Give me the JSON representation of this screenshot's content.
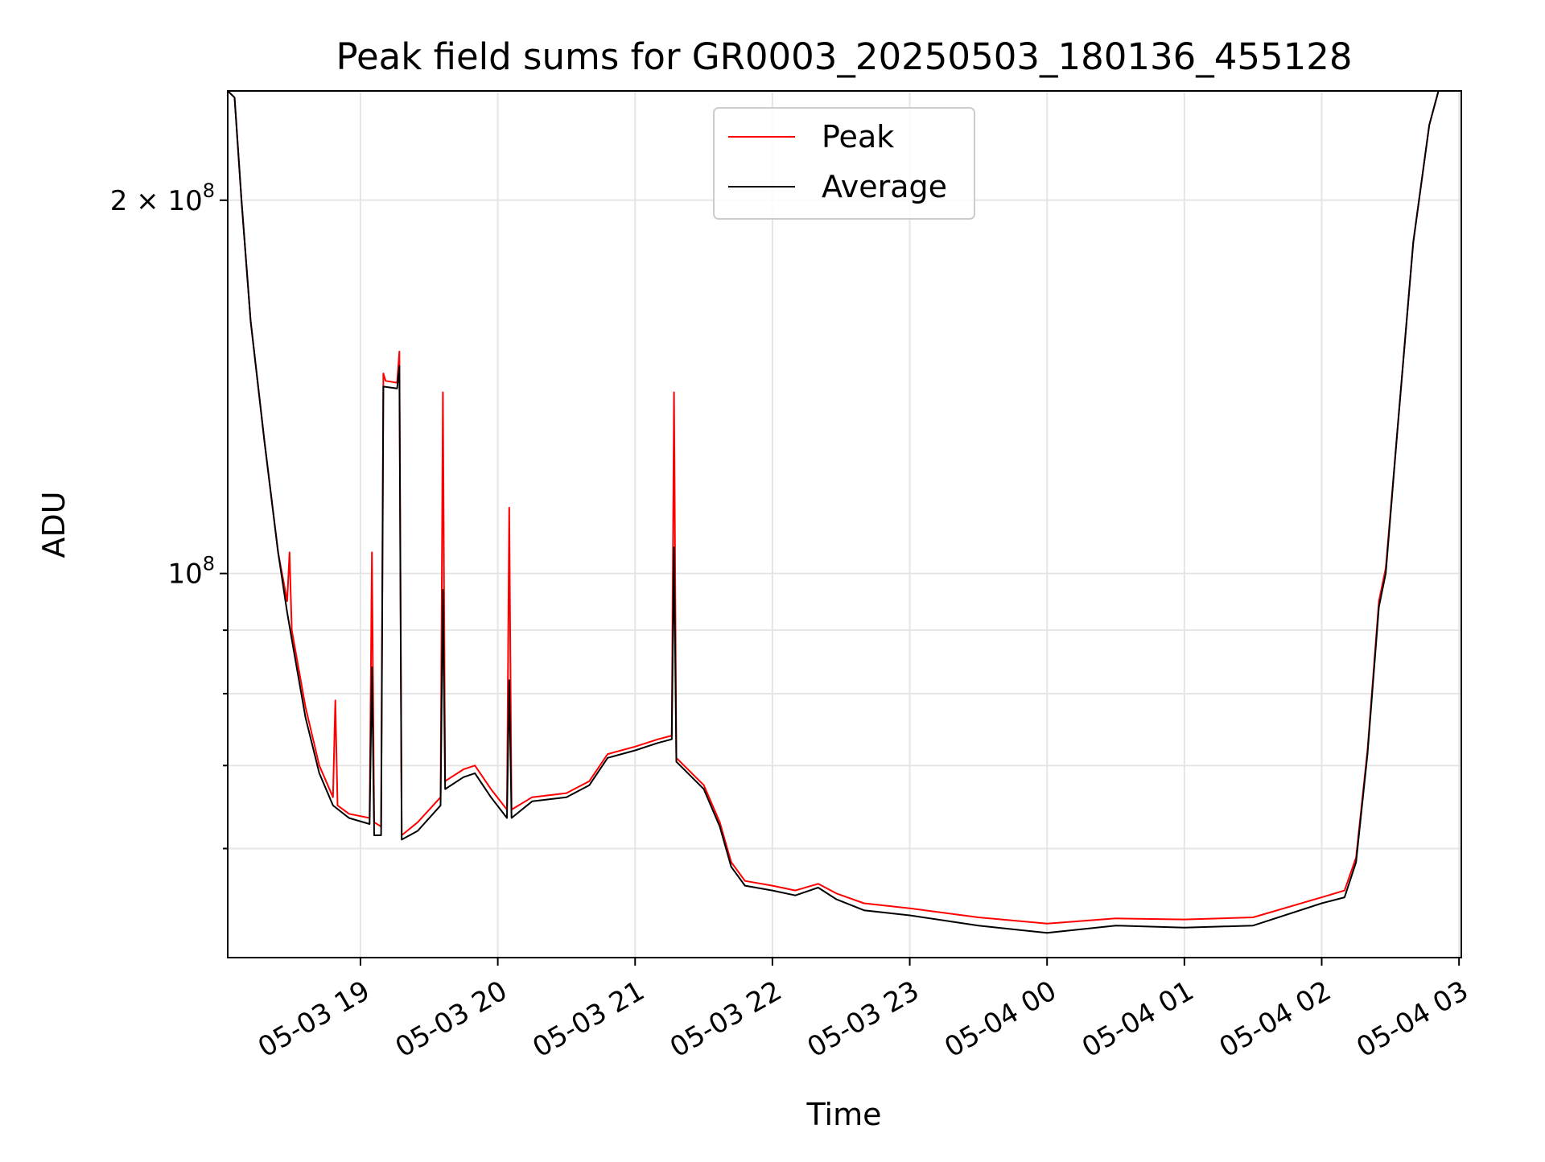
{
  "chart_data": {
    "type": "line",
    "title": "Peak field sums for GR0003_20250503_180136_455128",
    "xlabel": "Time",
    "ylabel": "ADU",
    "y_scale": "log",
    "x_range": [
      "2025-05-03 18:02",
      "2025-05-04 03:01"
    ],
    "ylim": [
      49000000,
      245000000
    ],
    "grid": true,
    "legend_position": "top-center",
    "x_ticks": [
      {
        "t": "2025-05-03 19:00",
        "label": "05-03 19"
      },
      {
        "t": "2025-05-03 20:00",
        "label": "05-03 20"
      },
      {
        "t": "2025-05-03 21:00",
        "label": "05-03 21"
      },
      {
        "t": "2025-05-03 22:00",
        "label": "05-03 22"
      },
      {
        "t": "2025-05-03 23:00",
        "label": "05-03 23"
      },
      {
        "t": "2025-05-04 00:00",
        "label": "05-04 00"
      },
      {
        "t": "2025-05-04 01:00",
        "label": "05-04 01"
      },
      {
        "t": "2025-05-04 02:00",
        "label": "05-04 02"
      },
      {
        "t": "2025-05-04 03:00",
        "label": "05-04 03"
      }
    ],
    "y_ticks_major": [
      {
        "value": 100000000,
        "base": "10",
        "exp": "8",
        "coef": ""
      },
      {
        "value": 200000000,
        "base": "10",
        "exp": "8",
        "coef": "2 × "
      }
    ],
    "y_ticks_minor": [
      60000000,
      70000000,
      80000000,
      90000000
    ],
    "series": [
      {
        "name": "Peak",
        "color": "#ff0000",
        "points": [
          [
            "2025-05-03 18:02",
            245000000
          ],
          [
            "2025-05-03 18:05",
            242000000
          ],
          [
            "2025-05-03 18:08",
            200000000
          ],
          [
            "2025-05-03 18:12",
            160000000
          ],
          [
            "2025-05-03 18:18",
            128000000
          ],
          [
            "2025-05-03 18:24",
            104000000
          ],
          [
            "2025-05-03 18:28",
            95000000
          ],
          [
            "2025-05-03 18:29",
            104000000
          ],
          [
            "2025-05-03 18:30",
            90000000
          ],
          [
            "2025-05-03 18:36",
            78000000
          ],
          [
            "2025-05-03 18:42",
            70000000
          ],
          [
            "2025-05-03 18:48",
            66000000
          ],
          [
            "2025-05-03 18:49",
            79000000
          ],
          [
            "2025-05-03 18:50",
            65000000
          ],
          [
            "2025-05-03 18:55",
            64000000
          ],
          [
            "2025-05-03 19:04",
            63500000
          ],
          [
            "2025-05-03 19:05",
            104000000
          ],
          [
            "2025-05-03 19:06",
            63000000
          ],
          [
            "2025-05-03 19:09",
            62500000
          ],
          [
            "2025-05-03 19:10",
            145000000
          ],
          [
            "2025-05-03 19:11",
            143000000
          ],
          [
            "2025-05-03 19:16",
            142500000
          ],
          [
            "2025-05-03 19:17",
            151000000
          ],
          [
            "2025-05-03 19:18",
            61500000
          ],
          [
            "2025-05-03 19:25",
            63000000
          ],
          [
            "2025-05-03 19:35",
            66000000
          ],
          [
            "2025-05-03 19:36",
            140000000
          ],
          [
            "2025-05-03 19:37",
            68000000
          ],
          [
            "2025-05-03 19:45",
            69500000
          ],
          [
            "2025-05-03 19:50",
            70000000
          ],
          [
            "2025-05-03 19:57",
            67000000
          ],
          [
            "2025-05-03 20:04",
            64500000
          ],
          [
            "2025-05-03 20:05",
            113000000
          ],
          [
            "2025-05-03 20:06",
            64500000
          ],
          [
            "2025-05-03 20:15",
            66000000
          ],
          [
            "2025-05-03 20:30",
            66500000
          ],
          [
            "2025-05-03 20:40",
            68000000
          ],
          [
            "2025-05-03 20:48",
            71500000
          ],
          [
            "2025-05-03 21:00",
            72500000
          ],
          [
            "2025-05-03 21:10",
            73500000
          ],
          [
            "2025-05-03 21:16",
            74000000
          ],
          [
            "2025-05-03 21:17",
            140000000
          ],
          [
            "2025-05-03 21:18",
            71000000
          ],
          [
            "2025-05-03 21:30",
            67500000
          ],
          [
            "2025-05-03 21:37",
            63000000
          ],
          [
            "2025-05-03 21:42",
            58500000
          ],
          [
            "2025-05-03 21:48",
            56500000
          ],
          [
            "2025-05-03 22:00",
            56000000
          ],
          [
            "2025-05-03 22:10",
            55500000
          ],
          [
            "2025-05-03 22:20",
            56200000
          ],
          [
            "2025-05-03 22:28",
            55200000
          ],
          [
            "2025-05-03 22:40",
            54200000
          ],
          [
            "2025-05-03 23:00",
            53700000
          ],
          [
            "2025-05-03 23:30",
            52800000
          ],
          [
            "2025-05-04 00:00",
            52200000
          ],
          [
            "2025-05-04 00:30",
            52700000
          ],
          [
            "2025-05-04 01:00",
            52600000
          ],
          [
            "2025-05-04 01:30",
            52800000
          ],
          [
            "2025-05-04 02:00",
            54800000
          ],
          [
            "2025-05-04 02:10",
            55500000
          ],
          [
            "2025-05-04 02:15",
            59000000
          ],
          [
            "2025-05-04 02:20",
            72000000
          ],
          [
            "2025-05-04 02:25",
            95000000
          ],
          [
            "2025-05-04 02:28",
            101000000
          ],
          [
            "2025-05-04 02:33",
            130000000
          ],
          [
            "2025-05-04 02:40",
            185000000
          ],
          [
            "2025-05-04 02:47",
            230000000
          ],
          [
            "2025-05-04 02:51",
            245000000
          ],
          [
            "2025-05-04 03:01",
            245000000
          ]
        ]
      },
      {
        "name": "Average",
        "color": "#000000",
        "points": [
          [
            "2025-05-03 18:02",
            245000000
          ],
          [
            "2025-05-03 18:05",
            242000000
          ],
          [
            "2025-05-03 18:08",
            200000000
          ],
          [
            "2025-05-03 18:12",
            160000000
          ],
          [
            "2025-05-03 18:18",
            128000000
          ],
          [
            "2025-05-03 18:24",
            104000000
          ],
          [
            "2025-05-03 18:28",
            93000000
          ],
          [
            "2025-05-03 18:30",
            88500000
          ],
          [
            "2025-05-03 18:36",
            76500000
          ],
          [
            "2025-05-03 18:42",
            69000000
          ],
          [
            "2025-05-03 18:48",
            65000000
          ],
          [
            "2025-05-03 18:55",
            63500000
          ],
          [
            "2025-05-03 19:04",
            62800000
          ],
          [
            "2025-05-03 19:05",
            84000000
          ],
          [
            "2025-05-03 19:06",
            61500000
          ],
          [
            "2025-05-03 19:09",
            61500000
          ],
          [
            "2025-05-03 19:10",
            141500000
          ],
          [
            "2025-05-03 19:16",
            141000000
          ],
          [
            "2025-05-03 19:17",
            147000000
          ],
          [
            "2025-05-03 19:18",
            61000000
          ],
          [
            "2025-05-03 19:25",
            62000000
          ],
          [
            "2025-05-03 19:35",
            65000000
          ],
          [
            "2025-05-03 19:36",
            97000000
          ],
          [
            "2025-05-03 19:37",
            67000000
          ],
          [
            "2025-05-03 19:45",
            68500000
          ],
          [
            "2025-05-03 19:50",
            69000000
          ],
          [
            "2025-05-03 19:57",
            66000000
          ],
          [
            "2025-05-03 20:04",
            63500000
          ],
          [
            "2025-05-03 20:05",
            82000000
          ],
          [
            "2025-05-03 20:06",
            63500000
          ],
          [
            "2025-05-03 20:15",
            65500000
          ],
          [
            "2025-05-03 20:30",
            66000000
          ],
          [
            "2025-05-03 20:40",
            67500000
          ],
          [
            "2025-05-03 20:48",
            71000000
          ],
          [
            "2025-05-03 21:00",
            72000000
          ],
          [
            "2025-05-03 21:10",
            73000000
          ],
          [
            "2025-05-03 21:16",
            73500000
          ],
          [
            "2025-05-03 21:17",
            105000000
          ],
          [
            "2025-05-03 21:18",
            70500000
          ],
          [
            "2025-05-03 21:30",
            67000000
          ],
          [
            "2025-05-03 21:37",
            62500000
          ],
          [
            "2025-05-03 21:42",
            58000000
          ],
          [
            "2025-05-03 21:48",
            56000000
          ],
          [
            "2025-05-03 22:00",
            55500000
          ],
          [
            "2025-05-03 22:10",
            55000000
          ],
          [
            "2025-05-03 22:20",
            55800000
          ],
          [
            "2025-05-03 22:28",
            54600000
          ],
          [
            "2025-05-03 22:40",
            53500000
          ],
          [
            "2025-05-03 23:00",
            53000000
          ],
          [
            "2025-05-03 23:30",
            52000000
          ],
          [
            "2025-05-04 00:00",
            51300000
          ],
          [
            "2025-05-04 00:30",
            52000000
          ],
          [
            "2025-05-04 01:00",
            51800000
          ],
          [
            "2025-05-04 01:30",
            52000000
          ],
          [
            "2025-05-04 02:00",
            54200000
          ],
          [
            "2025-05-04 02:10",
            54800000
          ],
          [
            "2025-05-04 02:15",
            58500000
          ],
          [
            "2025-05-04 02:20",
            71500000
          ],
          [
            "2025-05-04 02:25",
            94000000
          ],
          [
            "2025-05-04 02:28",
            100000000
          ],
          [
            "2025-05-04 02:33",
            130000000
          ],
          [
            "2025-05-04 02:40",
            185000000
          ],
          [
            "2025-05-04 02:47",
            230000000
          ],
          [
            "2025-05-04 02:51",
            245000000
          ],
          [
            "2025-05-04 03:01",
            245000000
          ]
        ]
      }
    ]
  }
}
